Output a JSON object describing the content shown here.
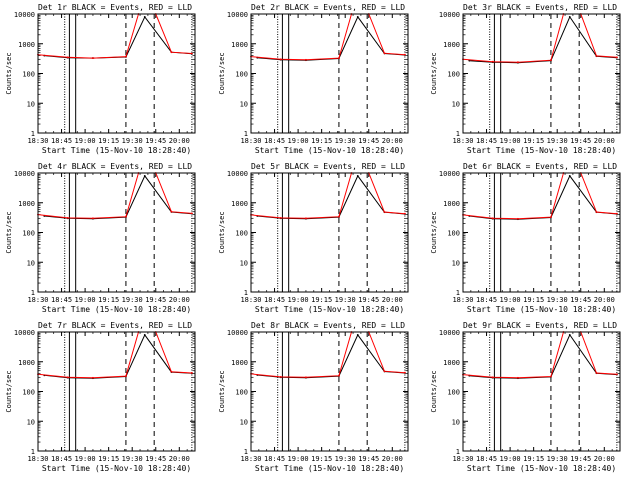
{
  "figure": {
    "panels": [
      {
        "title": "Det 1r BLACK = Events, RED = LLD",
        "xlabel": "Start Time (15-Nov-10 18:28:40)",
        "ylabel": "Counts/sec",
        "xticks": [
          "18:30",
          "18:45",
          "19:00",
          "19:15",
          "19:30",
          "19:45",
          "20:00"
        ]
      },
      {
        "title": "Det 2r BLACK = Events, RED = LLD",
        "xlabel": "Start Time (15-Nov-10 18:28:40)",
        "ylabel": "Counts/sec",
        "xticks": [
          "18:30",
          "18:45",
          "19:00",
          "19:15",
          "19:30",
          "19:45",
          "20:00"
        ]
      },
      {
        "title": "Det 3r BLACK = Events, RED = LLD",
        "xlabel": "Start Time (15-Nov-10 18:28:40)",
        "ylabel": "Counts/sec",
        "xticks": [
          "18:30",
          "18:45",
          "19:00",
          "19:15",
          "19:30",
          "19:45",
          "20:00"
        ]
      },
      {
        "title": "Det 4r BLACK = Events, RED = LLD",
        "xlabel": "Start Time (15-Nov-10 18:28:40)",
        "ylabel": "Counts/sec",
        "xticks": [
          "18:30",
          "18:45",
          "19:00",
          "19:15",
          "19:30",
          "19:45",
          "20:00"
        ]
      },
      {
        "title": "Det 5r BLACK = Events, RED = LLD",
        "xlabel": "Start Time (15-Nov-10 18:28:40)",
        "ylabel": "Counts/sec",
        "xticks": [
          "18:30",
          "18:45",
          "19:00",
          "19:15",
          "19:30",
          "19:45",
          "20:00"
        ]
      },
      {
        "title": "Det 6r BLACK = Events, RED = LLD",
        "xlabel": "Start Time (15-Nov-10 18:28:40)",
        "ylabel": "Counts/sec",
        "xticks": [
          "18:30",
          "18:45",
          "19:00",
          "19:15",
          "19:30",
          "19:45",
          "20:00"
        ]
      },
      {
        "title": "Det 7r BLACK = Events, RED = LLD",
        "xlabel": "Start Time (15-Nov-10 18:28:40)",
        "ylabel": "Counts/sec",
        "xticks": [
          "18:30",
          "18:45",
          "19:00",
          "19:15",
          "19:30",
          "19:45",
          "20:00"
        ]
      },
      {
        "title": "Det 8r BLACK = Events, RED = LLD",
        "xlabel": "Start Time (15-Nov-10 18:28:40)",
        "ylabel": "Counts/sec",
        "xticks": [
          "18:30",
          "18:45",
          "19:00",
          "19:15",
          "19:30",
          "19:45",
          "20:00"
        ]
      },
      {
        "title": "Det 9r BLACK = Events, RED = LLD",
        "xlabel": "Start Time (15-Nov-10 18:28:40)",
        "ylabel": "Counts/sec",
        "xticks": [
          "18:30",
          "18:45",
          "19:00",
          "19:15",
          "19:30",
          "19:45",
          "20:00"
        ]
      }
    ]
  },
  "chart_data": [
    {
      "type": "line",
      "title": "Det 1r BLACK = Events, RED = LLD",
      "xlabel": "Start Time (15-Nov-10 18:28:40)",
      "ylabel": "Counts/sec",
      "yscale": "log",
      "ylim": [
        1,
        10000
      ],
      "xlim": [
        "18:30",
        "20:10"
      ],
      "xticks": [
        "18:30",
        "18:45",
        "19:00",
        "19:15",
        "19:30",
        "19:45",
        "20:00"
      ],
      "yticks": [
        "1",
        "10",
        "100",
        "1000",
        "10000"
      ],
      "colors": {
        "events": "#000000",
        "lld": "#ff0000"
      },
      "series": [
        {
          "name": "Events",
          "color": "#000000",
          "x": [
            "18:34",
            "18:49",
            "19:05",
            "19:26",
            "19:38",
            "19:55",
            "20:08"
          ],
          "y": [
            400,
            340,
            330,
            360,
            8000,
            520,
            460
          ]
        },
        {
          "name": "LLD",
          "color": "#ff0000",
          "x": [
            "18:30",
            "18:49",
            "19:05",
            "19:26",
            "19:34",
            "19:45",
            "19:55",
            "20:08"
          ],
          "y": [
            430,
            350,
            330,
            370,
            10000,
            10000,
            520,
            470
          ]
        }
      ]
    },
    {
      "type": "line",
      "title": "Det 2r BLACK = Events, RED = LLD",
      "xlabel": "Start Time (15-Nov-10 18:28:40)",
      "ylabel": "Counts/sec",
      "yscale": "log",
      "ylim": [
        1,
        10000
      ],
      "xlim": [
        "18:30",
        "20:10"
      ],
      "xticks": [
        "18:30",
        "18:45",
        "19:00",
        "19:15",
        "19:30",
        "19:45",
        "20:00"
      ],
      "yticks": [
        "1",
        "10",
        "100",
        "1000",
        "10000"
      ],
      "colors": {
        "events": "#000000",
        "lld": "#ff0000"
      },
      "series": [
        {
          "name": "Events",
          "color": "#000000",
          "x": [
            "18:34",
            "18:49",
            "19:05",
            "19:26",
            "19:38",
            "19:55",
            "20:08"
          ],
          "y": [
            340,
            290,
            280,
            320,
            8000,
            470,
            420
          ]
        },
        {
          "name": "LLD",
          "color": "#ff0000",
          "x": [
            "18:30",
            "18:49",
            "19:05",
            "19:26",
            "19:34",
            "19:45",
            "19:55",
            "20:08"
          ],
          "y": [
            370,
            300,
            290,
            330,
            10000,
            10000,
            480,
            430
          ]
        }
      ]
    },
    {
      "type": "line",
      "title": "Det 3r BLACK = Events, RED = LLD",
      "xlabel": "Start Time (15-Nov-10 18:28:40)",
      "ylabel": "Counts/sec",
      "yscale": "log",
      "ylim": [
        1,
        10000
      ],
      "xlim": [
        "18:30",
        "20:10"
      ],
      "xticks": [
        "18:30",
        "18:45",
        "19:00",
        "19:15",
        "19:30",
        "19:45",
        "20:00"
      ],
      "yticks": [
        "1",
        "10",
        "100",
        "1000",
        "10000"
      ],
      "colors": {
        "events": "#000000",
        "lld": "#ff0000"
      },
      "series": [
        {
          "name": "Events",
          "color": "#000000",
          "x": [
            "18:34",
            "18:49",
            "19:05",
            "19:26",
            "19:38",
            "19:55",
            "20:08"
          ],
          "y": [
            270,
            240,
            230,
            270,
            8000,
            380,
            340
          ]
        },
        {
          "name": "LLD",
          "color": "#ff0000",
          "x": [
            "18:30",
            "18:49",
            "19:05",
            "19:26",
            "19:34",
            "19:45",
            "19:55",
            "20:08"
          ],
          "y": [
            300,
            250,
            240,
            280,
            10000,
            10000,
            390,
            350
          ]
        }
      ]
    },
    {
      "type": "line",
      "title": "Det 4r BLACK = Events, RED = LLD",
      "xlabel": "Start Time (15-Nov-10 18:28:40)",
      "ylabel": "Counts/sec",
      "yscale": "log",
      "ylim": [
        1,
        10000
      ],
      "xlim": [
        "18:30",
        "20:10"
      ],
      "xticks": [
        "18:30",
        "18:45",
        "19:00",
        "19:15",
        "19:30",
        "19:45",
        "20:00"
      ],
      "yticks": [
        "1",
        "10",
        "100",
        "1000",
        "10000"
      ],
      "colors": {
        "events": "#000000",
        "lld": "#ff0000"
      },
      "series": [
        {
          "name": "Events",
          "color": "#000000",
          "x": [
            "18:34",
            "18:49",
            "19:05",
            "19:26",
            "19:38",
            "19:55",
            "20:08"
          ],
          "y": [
            360,
            300,
            290,
            330,
            8000,
            490,
            430
          ]
        },
        {
          "name": "LLD",
          "color": "#ff0000",
          "x": [
            "18:30",
            "18:49",
            "19:05",
            "19:26",
            "19:34",
            "19:45",
            "19:55",
            "20:08"
          ],
          "y": [
            400,
            310,
            300,
            340,
            10000,
            10000,
            500,
            440
          ]
        }
      ]
    },
    {
      "type": "line",
      "title": "Det 5r BLACK = Events, RED = LLD",
      "xlabel": "Start Time (15-Nov-10 18:28:40)",
      "ylabel": "Counts/sec",
      "yscale": "log",
      "ylim": [
        1,
        10000
      ],
      "xlim": [
        "18:30",
        "20:10"
      ],
      "xticks": [
        "18:30",
        "18:45",
        "19:00",
        "19:15",
        "19:30",
        "19:45",
        "20:00"
      ],
      "yticks": [
        "1",
        "10",
        "100",
        "1000",
        "10000"
      ],
      "colors": {
        "events": "#000000",
        "lld": "#ff0000"
      },
      "series": [
        {
          "name": "Events",
          "color": "#000000",
          "x": [
            "18:34",
            "18:49",
            "19:05",
            "19:26",
            "19:38",
            "19:55",
            "20:08"
          ],
          "y": [
            360,
            300,
            290,
            330,
            8000,
            480,
            420
          ]
        },
        {
          "name": "LLD",
          "color": "#ff0000",
          "x": [
            "18:30",
            "18:49",
            "19:05",
            "19:26",
            "19:34",
            "19:45",
            "19:55",
            "20:08"
          ],
          "y": [
            390,
            310,
            300,
            340,
            10000,
            10000,
            490,
            430
          ]
        }
      ]
    },
    {
      "type": "line",
      "title": "Det 6r BLACK = Events, RED = LLD",
      "xlabel": "Start Time (15-Nov-10 18:28:40)",
      "ylabel": "Counts/sec",
      "yscale": "log",
      "ylim": [
        1,
        10000
      ],
      "xlim": [
        "18:30",
        "20:10"
      ],
      "xticks": [
        "18:30",
        "18:45",
        "19:00",
        "19:15",
        "19:30",
        "19:45",
        "20:00"
      ],
      "yticks": [
        "1",
        "10",
        "100",
        "1000",
        "10000"
      ],
      "colors": {
        "events": "#000000",
        "lld": "#ff0000"
      },
      "series": [
        {
          "name": "Events",
          "color": "#000000",
          "x": [
            "18:34",
            "18:49",
            "19:05",
            "19:26",
            "19:38",
            "19:55",
            "20:08"
          ],
          "y": [
            360,
            290,
            280,
            320,
            8000,
            480,
            420
          ]
        },
        {
          "name": "LLD",
          "color": "#ff0000",
          "x": [
            "18:30",
            "18:49",
            "19:05",
            "19:26",
            "19:34",
            "19:45",
            "19:55",
            "20:08"
          ],
          "y": [
            390,
            300,
            290,
            330,
            10000,
            10000,
            490,
            430
          ]
        }
      ]
    },
    {
      "type": "line",
      "title": "Det 7r BLACK = Events, RED = LLD",
      "xlabel": "Start Time (15-Nov-10 18:28:40)",
      "ylabel": "Counts/sec",
      "yscale": "log",
      "ylim": [
        1,
        10000
      ],
      "xlim": [
        "18:30",
        "20:10"
      ],
      "xticks": [
        "18:30",
        "18:45",
        "19:00",
        "19:15",
        "19:30",
        "19:45",
        "20:00"
      ],
      "yticks": [
        "1",
        "10",
        "100",
        "1000",
        "10000"
      ],
      "colors": {
        "events": "#000000",
        "lld": "#ff0000"
      },
      "series": [
        {
          "name": "Events",
          "color": "#000000",
          "x": [
            "18:34",
            "18:49",
            "19:05",
            "19:26",
            "19:38",
            "19:55",
            "20:08"
          ],
          "y": [
            350,
            290,
            280,
            320,
            8000,
            450,
            410
          ]
        },
        {
          "name": "LLD",
          "color": "#ff0000",
          "x": [
            "18:30",
            "18:49",
            "19:05",
            "19:26",
            "19:34",
            "19:45",
            "19:55",
            "20:08"
          ],
          "y": [
            380,
            300,
            290,
            330,
            10000,
            10000,
            460,
            420
          ]
        }
      ]
    },
    {
      "type": "line",
      "title": "Det 8r BLACK = Events, RED = LLD",
      "xlabel": "Start Time (15-Nov-10 18:28:40)",
      "ylabel": "Counts/sec",
      "yscale": "log",
      "ylim": [
        1,
        10000
      ],
      "xlim": [
        "18:30",
        "20:10"
      ],
      "xticks": [
        "18:30",
        "18:45",
        "19:00",
        "19:15",
        "19:30",
        "19:45",
        "20:00"
      ],
      "yticks": [
        "1",
        "10",
        "100",
        "1000",
        "10000"
      ],
      "colors": {
        "events": "#000000",
        "lld": "#ff0000"
      },
      "series": [
        {
          "name": "Events",
          "color": "#000000",
          "x": [
            "18:34",
            "18:49",
            "19:05",
            "19:26",
            "19:38",
            "19:55",
            "20:08"
          ],
          "y": [
            360,
            300,
            290,
            330,
            8000,
            470,
            420
          ]
        },
        {
          "name": "LLD",
          "color": "#ff0000",
          "x": [
            "18:30",
            "18:49",
            "19:05",
            "19:26",
            "19:34",
            "19:45",
            "19:55",
            "20:08"
          ],
          "y": [
            390,
            310,
            300,
            340,
            10000,
            10000,
            480,
            430
          ]
        }
      ]
    },
    {
      "type": "line",
      "title": "Det 9r BLACK = Events, RED = LLD",
      "xlabel": "Start Time (15-Nov-10 18:28:40)",
      "ylabel": "Counts/sec",
      "yscale": "log",
      "ylim": [
        1,
        10000
      ],
      "xlim": [
        "18:30",
        "20:10"
      ],
      "xticks": [
        "18:30",
        "18:45",
        "19:00",
        "19:15",
        "19:30",
        "19:45",
        "20:00"
      ],
      "yticks": [
        "1",
        "10",
        "100",
        "1000",
        "10000"
      ],
      "colors": {
        "events": "#000000",
        "lld": "#ff0000"
      },
      "series": [
        {
          "name": "Events",
          "color": "#000000",
          "x": [
            "18:34",
            "18:49",
            "19:05",
            "19:26",
            "19:38",
            "19:55",
            "20:08"
          ],
          "y": [
            340,
            290,
            280,
            310,
            8000,
            410,
            370
          ]
        },
        {
          "name": "LLD",
          "color": "#ff0000",
          "x": [
            "18:30",
            "18:49",
            "19:05",
            "19:26",
            "19:34",
            "19:45",
            "19:55",
            "20:08"
          ],
          "y": [
            370,
            300,
            290,
            320,
            10000,
            10000,
            420,
            380
          ]
        }
      ]
    }
  ]
}
